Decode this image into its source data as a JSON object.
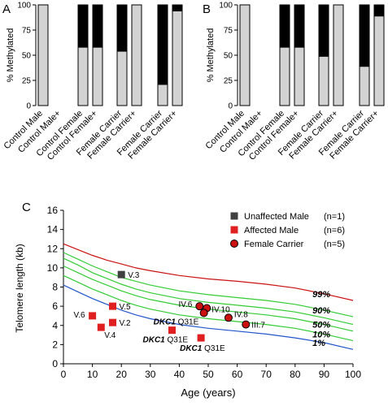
{
  "panels": {
    "a": {
      "letter": "A"
    },
    "b": {
      "letter": "B"
    },
    "c": {
      "letter": "C"
    }
  },
  "chart_data": [
    {
      "type": "bar",
      "panel": "A",
      "stacked": true,
      "ylabel": "% Methylated",
      "ylim": [
        0,
        100
      ],
      "yticks": [
        0,
        25,
        50,
        75,
        100
      ],
      "categories": [
        "Control Male",
        "Control Male+",
        "Control Female",
        "Control Female+",
        "Female Carrier",
        "Female Carrier+",
        "Female Carrier",
        "Female Carrier+"
      ],
      "series": [
        {
          "values": [
            100,
            0,
            58,
            58,
            54,
            100,
            21,
            94
          ],
          "color": "#d3d3d3"
        },
        {
          "values": [
            0,
            0,
            42,
            42,
            46,
            0,
            79,
            6
          ],
          "color": "#000000"
        }
      ]
    },
    {
      "type": "bar",
      "panel": "B",
      "stacked": true,
      "ylabel": "% Methylated",
      "ylim": [
        0,
        100
      ],
      "yticks": [
        0,
        25,
        50,
        75,
        100
      ],
      "categories": [
        "Control Male",
        "Control Male+",
        "Control Female",
        "Control Female+",
        "Female Carrier",
        "Female Carrier+",
        "Female Carrier",
        "Female Carrier+"
      ],
      "series": [
        {
          "values": [
            100,
            0,
            58,
            58,
            49,
            100,
            39,
            89
          ],
          "color": "#d3d3d3"
        },
        {
          "values": [
            0,
            0,
            42,
            42,
            51,
            0,
            61,
            11
          ],
          "color": "#000000"
        }
      ]
    },
    {
      "type": "scatter",
      "panel": "C",
      "xlabel": "Age (years)",
      "ylabel": "Telomere length (kb)",
      "xlim": [
        0,
        100
      ],
      "ylim": [
        0,
        16
      ],
      "xticks": [
        0,
        10,
        20,
        30,
        40,
        50,
        60,
        70,
        80,
        90,
        100
      ],
      "yticks": [
        0,
        2,
        4,
        6,
        8,
        10,
        12,
        14,
        16
      ],
      "percentile_curves": [
        {
          "label": "99%",
          "color": "#cc1111",
          "x": [
            0,
            5,
            10,
            15,
            20,
            25,
            30,
            40,
            50,
            60,
            70,
            80,
            90,
            100
          ],
          "y": [
            12.5,
            11.9,
            11.3,
            10.8,
            10.4,
            10.0,
            9.7,
            9.2,
            8.85,
            8.6,
            8.3,
            7.9,
            7.3,
            6.6
          ]
        },
        {
          "label": "90%",
          "color": "#33cc33",
          "x": [
            0,
            5,
            10,
            15,
            20,
            25,
            30,
            40,
            50,
            60,
            70,
            80,
            90,
            100
          ],
          "y": [
            11.6,
            10.9,
            10.2,
            9.6,
            9.0,
            8.6,
            8.2,
            7.6,
            7.2,
            6.9,
            6.6,
            6.2,
            5.6,
            4.9
          ]
        },
        {
          "label": null,
          "color": "#33cc33",
          "x": [
            0,
            5,
            10,
            15,
            20,
            25,
            30,
            40,
            50,
            60,
            70,
            80,
            90,
            100
          ],
          "y": [
            11.0,
            10.3,
            9.5,
            8.9,
            8.3,
            7.8,
            7.4,
            6.8,
            6.4,
            6.1,
            5.8,
            5.4,
            4.8,
            4.1
          ]
        },
        {
          "label": "50%",
          "color": "#33cc33",
          "x": [
            0,
            5,
            10,
            15,
            20,
            25,
            30,
            40,
            50,
            60,
            70,
            80,
            90,
            100
          ],
          "y": [
            10.2,
            9.5,
            8.8,
            8.2,
            7.6,
            7.1,
            6.7,
            6.1,
            5.7,
            5.4,
            5.1,
            4.7,
            4.1,
            3.4
          ]
        },
        {
          "label": "10%",
          "color": "#33cc33",
          "x": [
            0,
            5,
            10,
            15,
            20,
            25,
            30,
            40,
            50,
            60,
            70,
            80,
            90,
            100
          ],
          "y": [
            9.2,
            8.5,
            7.8,
            7.2,
            6.6,
            6.1,
            5.7,
            5.1,
            4.7,
            4.4,
            4.1,
            3.7,
            3.1,
            2.4
          ]
        },
        {
          "label": "1%",
          "color": "#2255cc",
          "x": [
            0,
            5,
            10,
            15,
            20,
            25,
            30,
            40,
            50,
            60,
            70,
            80,
            90,
            100
          ],
          "y": [
            8.2,
            7.5,
            6.8,
            6.2,
            5.6,
            5.1,
            4.7,
            4.1,
            3.7,
            3.4,
            3.1,
            2.7,
            2.2,
            1.5
          ]
        }
      ],
      "legend": {
        "placement": "top-right",
        "items": [
          {
            "label": "Unaffected Male",
            "n": "(n=1)",
            "marker": "square",
            "color": "#404040"
          },
          {
            "label": "Affected Male",
            "n": "(n=6)",
            "marker": "square",
            "color": "#e02020"
          },
          {
            "label": "Female Carrier",
            "n": "(n=5)",
            "marker": "circle",
            "color": "#cc1111"
          }
        ]
      },
      "points": [
        {
          "group": "Unaffected Male",
          "label": "V.3",
          "x": 20,
          "y": 9.3
        },
        {
          "group": "Affected Male",
          "label": "V.5",
          "x": 17,
          "y": 6.0
        },
        {
          "group": "Affected Male",
          "label": "V.6",
          "x": 10,
          "y": 5.0
        },
        {
          "group": "Affected Male",
          "label": "V.2",
          "x": 17,
          "y": 4.3
        },
        {
          "group": "Affected Male",
          "label": "V.4",
          "x": 13,
          "y": 3.8
        },
        {
          "group": "Affected Male",
          "label": "",
          "x": 37.5,
          "y": 3.5
        },
        {
          "group": "Affected Male",
          "label": "",
          "x": 47.5,
          "y": 2.7
        },
        {
          "group": "Female Carrier",
          "label": "IV.6",
          "x": 47,
          "y": 6.0
        },
        {
          "group": "Female Carrier",
          "label": "IV.10",
          "x": 49.5,
          "y": 5.8
        },
        {
          "group": "Female Carrier",
          "label": "",
          "x": 48.5,
          "y": 5.3
        },
        {
          "group": "Female Carrier",
          "label": "IV.8",
          "x": 57,
          "y": 4.8
        },
        {
          "group": "Female Carrier",
          "label": "III.7",
          "x": 63,
          "y": 4.1
        }
      ],
      "annotations": [
        {
          "gene": "DKC1",
          "variant": "Q31E",
          "near_x": 37.5,
          "near_y": 3.5
        },
        {
          "gene": "DKC1",
          "variant": "Q31E",
          "near_x": 47.5,
          "near_y": 2.7
        },
        {
          "gene": "DKC1",
          "variant": "Q31E",
          "near_x": 48.5,
          "near_y": 5.3
        }
      ]
    }
  ]
}
